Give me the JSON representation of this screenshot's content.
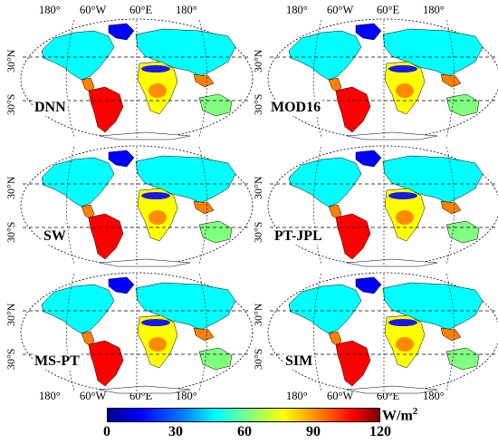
{
  "panels": [
    {
      "label": "DNN"
    },
    {
      "label": "MOD16"
    },
    {
      "label": "SW"
    },
    {
      "label": "PT-JPL"
    },
    {
      "label": "MS-PT"
    },
    {
      "label": "SIM"
    }
  ],
  "lon_labels": [
    "180°",
    "60°W",
    "60°E",
    "180°"
  ],
  "lat_labels": [
    "30°N",
    "30°S"
  ],
  "colorbar": {
    "unit_base": "W/m",
    "unit_exp": "2",
    "ticks": [
      "0",
      "30",
      "60",
      "90",
      "120"
    ],
    "colors": [
      "#00008f",
      "#0000ff",
      "#0080ff",
      "#00ffff",
      "#80ff80",
      "#ffff00",
      "#ff8000",
      "#ff0000",
      "#800000"
    ]
  }
}
